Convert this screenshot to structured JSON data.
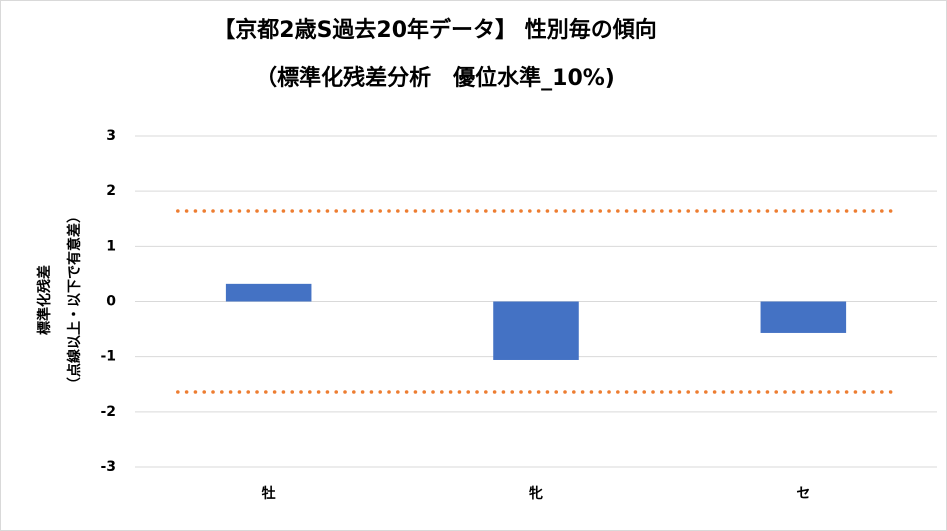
{
  "chart_data": {
    "type": "bar",
    "title": "【京都2歳S過去20年データ】 性別毎の傾向",
    "subtitle": "（標準化残差分析　優位水準_10%)",
    "y_label": "標準化残差",
    "y_label_note": "（点線以上・以下で有意差）",
    "categories": [
      "牡",
      "牝",
      "セ"
    ],
    "values": [
      0.32,
      -1.06,
      -0.57
    ],
    "color": "#4472c4",
    "threshold_lines": [
      1.64,
      -1.64
    ],
    "threshold_color": "#ed7d31",
    "ylim": [
      -3,
      3
    ],
    "yticks": [
      -3,
      -2,
      -1,
      0,
      1,
      2,
      3
    ],
    "grid": true
  }
}
